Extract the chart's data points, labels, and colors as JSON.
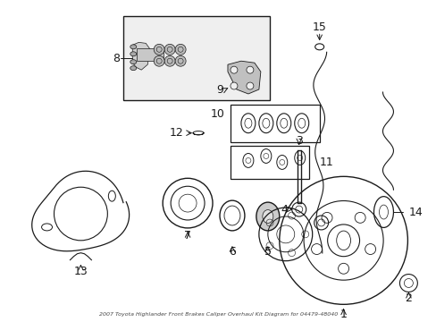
{
  "title": "2007 Toyota Highlander Front Brakes Caliper Overhaul Kit Diagram for 04479-48040",
  "bg_color": "#ffffff",
  "fig_width": 4.89,
  "fig_height": 3.6,
  "dpi": 100,
  "line_color": "#1a1a1a"
}
